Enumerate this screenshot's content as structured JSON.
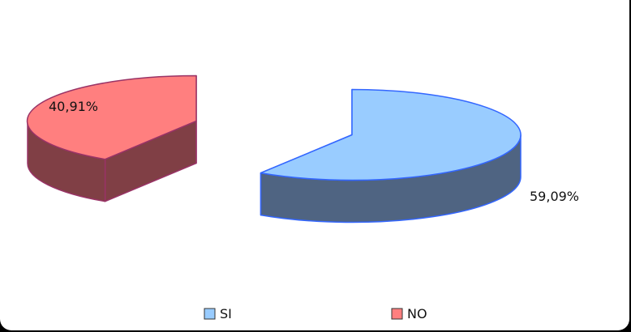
{
  "chart_data": {
    "type": "pie",
    "style": "3d-exploded",
    "title": "",
    "categories": [
      "SI",
      "NO"
    ],
    "values": [
      59.09,
      40.91
    ],
    "data_labels": [
      "59,09%",
      "40,91%"
    ],
    "colors": {
      "SI": {
        "top": "#99CCFF",
        "side": "#4F6482",
        "edge": "#3366FF"
      },
      "NO": {
        "top": "#FF7F7F",
        "side": "#803F45",
        "edge": "#993366"
      }
    },
    "legend": {
      "position": "bottom",
      "items": [
        {
          "label": "SI",
          "color": "#99CCFF"
        },
        {
          "label": "NO",
          "color": "#FF7F7F"
        }
      ]
    }
  }
}
